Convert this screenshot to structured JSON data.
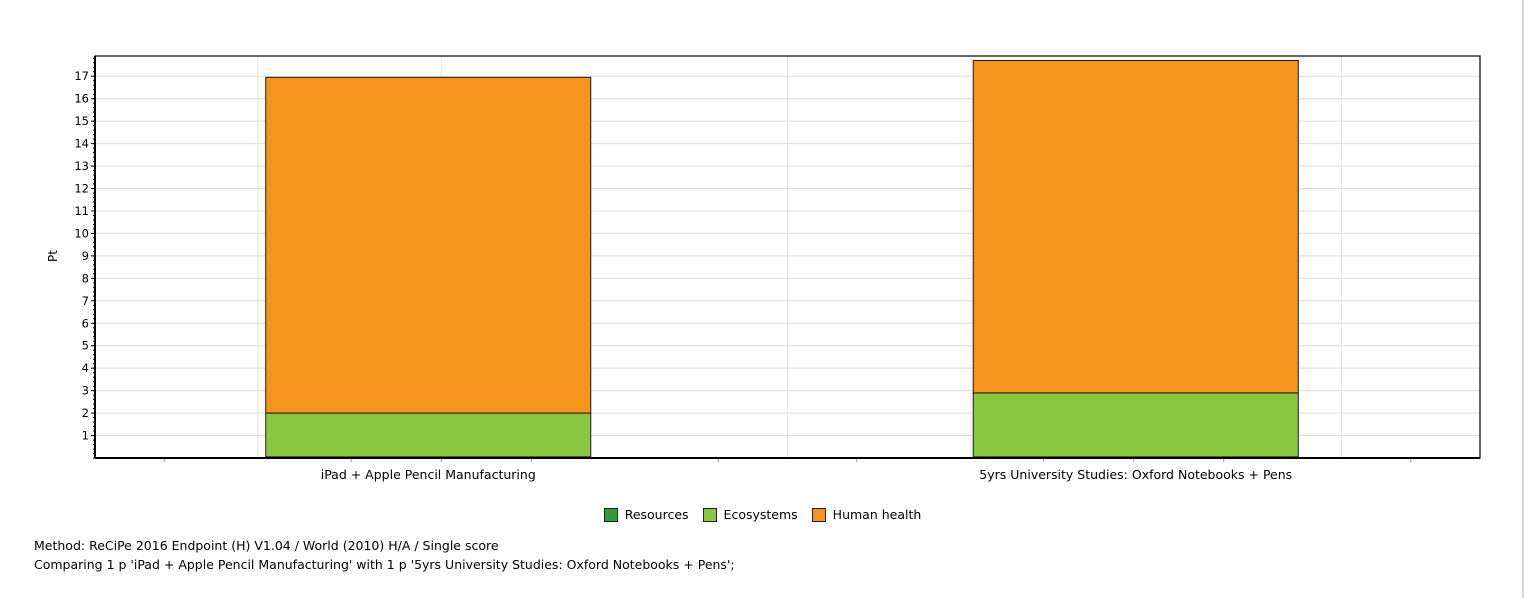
{
  "chart_data": {
    "type": "bar",
    "stacked": true,
    "categories": [
      "iPad + Apple Pencil Manufacturing",
      "5yrs University Studies: Oxford Notebooks + Pens"
    ],
    "series": [
      {
        "name": "Resources",
        "values": [
          0.05,
          0.05
        ],
        "color": "#2e9e38"
      },
      {
        "name": "Ecosystems",
        "values": [
          1.95,
          2.85
        ],
        "color": "#8cc63f"
      },
      {
        "name": "Human health",
        "values": [
          14.95,
          14.8
        ],
        "color": "#f7941d"
      }
    ],
    "ylabel": "Pt",
    "ylim": [
      0,
      17.9
    ],
    "yticks": [
      1,
      2,
      3,
      4,
      5,
      6,
      7,
      8,
      9,
      10,
      11,
      12,
      13,
      14,
      15,
      16,
      17
    ],
    "grid": true,
    "legend_position": "bottom"
  },
  "footer": {
    "method": "Method: ReCiPe 2016 Endpoint (H) V1.04 / World (2010) H/A / Single score",
    "comparison": "Comparing 1 p 'iPad + Apple Pencil Manufacturing' with 1 p '5yrs University Studies: Oxford Notebooks + Pens';"
  }
}
